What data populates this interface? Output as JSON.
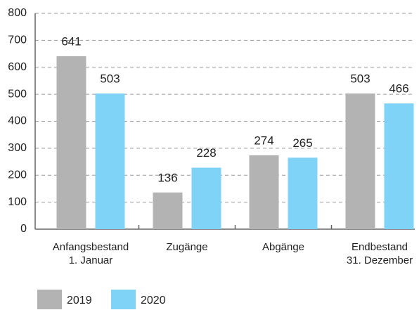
{
  "chart_data": {
    "type": "bar",
    "categories": [
      "Anfangsbestand\n1. Januar",
      "Zugänge",
      "Abgänge",
      "Endbestand\n31. Dezember"
    ],
    "series": [
      {
        "name": "2019",
        "color": "#b3b3b3",
        "values": [
          641,
          136,
          274,
          503
        ]
      },
      {
        "name": "2020",
        "color": "#7fd3f7",
        "values": [
          503,
          228,
          265,
          466
        ]
      }
    ],
    "ylim": [
      0,
      800
    ],
    "yticks": [
      0,
      100,
      200,
      300,
      400,
      500,
      600,
      700,
      800
    ],
    "grid": true,
    "legend": "bottom-left"
  }
}
